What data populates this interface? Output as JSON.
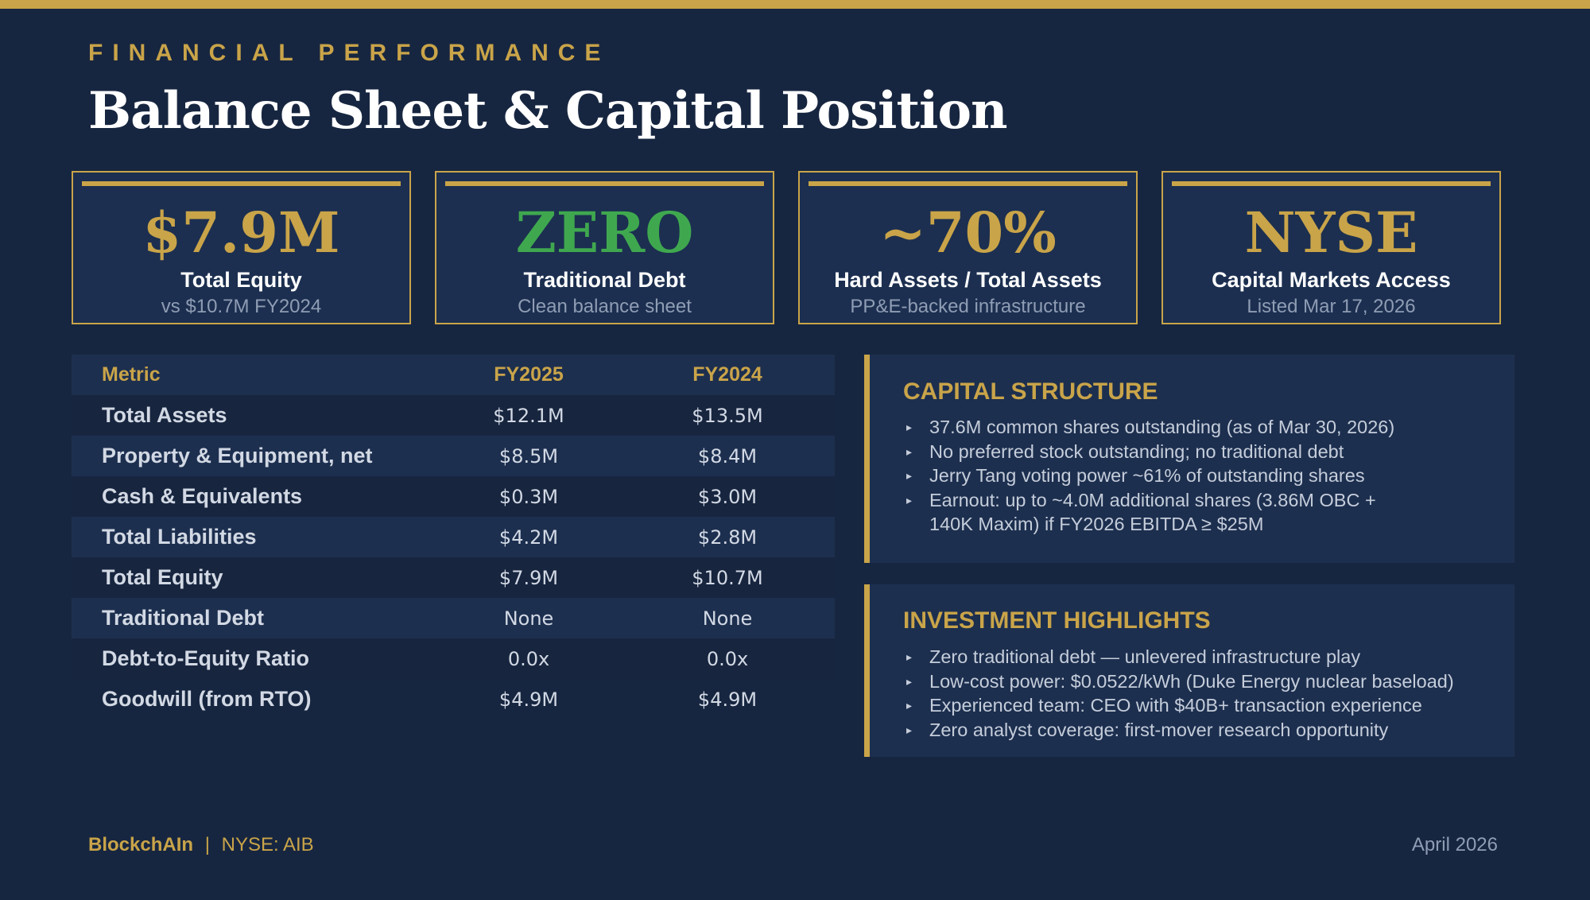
{
  "header": {
    "kicker": "FINANCIAL PERFORMANCE",
    "title": "Balance Sheet & Capital Position"
  },
  "stats": [
    {
      "value": "$7.9M",
      "label": "Total Equity",
      "sub": "vs $10.7M FY2024",
      "color": "#c9a449"
    },
    {
      "value": "ZERO",
      "label": "Traditional Debt",
      "sub": "Clean balance sheet",
      "color": "#3fa84f"
    },
    {
      "value": "~70%",
      "label": "Hard Assets / Total Assets",
      "sub": "PP&E-backed infrastructure",
      "color": "#c9a449"
    },
    {
      "value": "NYSE",
      "label": "Capital Markets Access",
      "sub": "Listed Mar 17, 2026",
      "color": "#c9a449"
    }
  ],
  "table": {
    "headers": [
      "Metric",
      "FY2025",
      "FY2024"
    ],
    "rows": [
      [
        "Total Assets",
        "$12.1M",
        "$13.5M"
      ],
      [
        "Property & Equipment, net",
        "$8.5M",
        "$8.4M"
      ],
      [
        "Cash & Equivalents",
        "$0.3M",
        "$3.0M"
      ],
      [
        "Total Liabilities",
        "$4.2M",
        "$2.8M"
      ],
      [
        "Total Equity",
        "$7.9M",
        "$10.7M"
      ],
      [
        "Traditional Debt",
        "None",
        "None"
      ],
      [
        "Debt-to-Equity Ratio",
        "0.0x",
        "0.0x"
      ],
      [
        "Goodwill (from RTO)",
        "$4.9M",
        "$4.9M"
      ]
    ]
  },
  "capital_structure": {
    "title": "CAPITAL STRUCTURE",
    "bullet_glyph": "▸",
    "items": [
      "37.6M common shares outstanding (as of Mar 30, 2026)",
      "No preferred stock outstanding; no traditional debt",
      "Jerry Tang voting power ~61% of outstanding shares",
      "Earnout: up to ~4.0M additional shares (3.86M OBC + 140K Maxim) if FY2026 EBITDA ≥ $25M"
    ]
  },
  "investment_highlights": {
    "title": "INVESTMENT HIGHLIGHTS",
    "bullet_glyph": "▸",
    "items": [
      "Zero traditional debt — unlevered infrastructure play",
      "Low-cost power: $0.0522/kWh (Duke Energy nuclear baseload)",
      "Experienced team: CEO with $40B+ transaction experience",
      "Zero analyst coverage: first-mover research opportunity"
    ]
  },
  "footer": {
    "brand": "BlockchAIn",
    "separator": "|",
    "ticker": "NYSE: AIB",
    "date": "April 2026"
  },
  "colors": {
    "background": "#172640",
    "accent_gold": "#c9a449",
    "accent_green": "#3fa84f",
    "panel": "#1d2f4f"
  }
}
